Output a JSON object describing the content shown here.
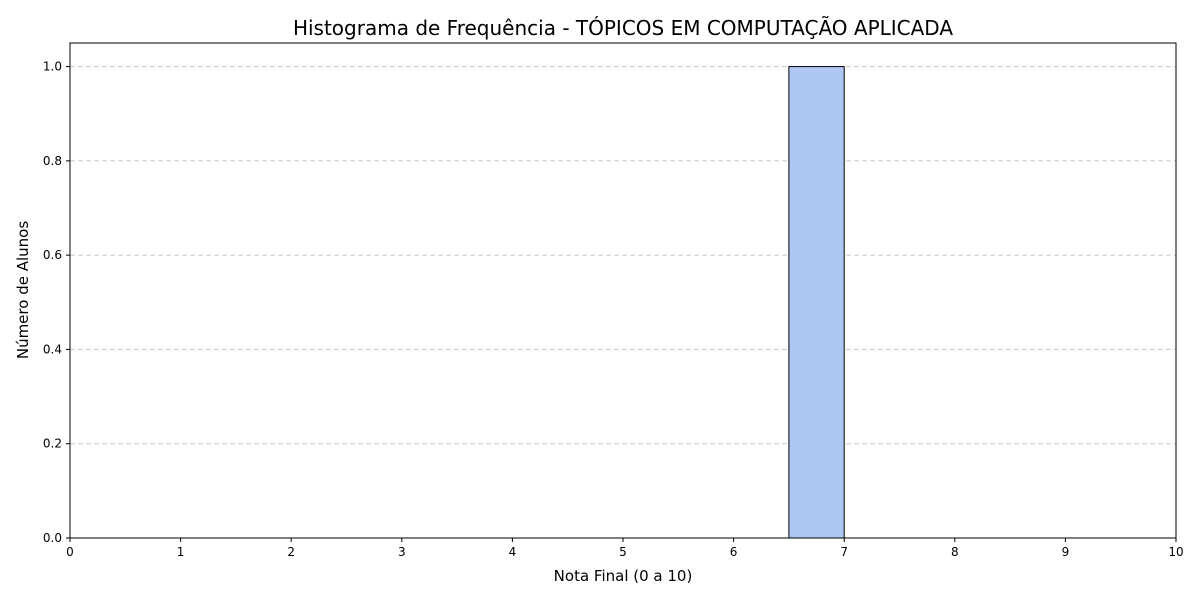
{
  "chart_data": {
    "type": "bar",
    "title": "Histograma de Frequência - TÓPICOS EM COMPUTAÇÃO APLICADA",
    "xlabel": "Nota Final (0 a 10)",
    "ylabel": "Número de Alunos",
    "xlim": [
      0,
      10
    ],
    "ylim": [
      0,
      1.05
    ],
    "xticks": [
      "0",
      "1",
      "2",
      "3",
      "4",
      "5",
      "6",
      "7",
      "8",
      "9",
      "10"
    ],
    "yticks": [
      "0.0",
      "0.2",
      "0.4",
      "0.6",
      "0.8",
      "1.0"
    ],
    "bins": [
      {
        "start": 6.5,
        "end": 7.0,
        "count": 1
      }
    ],
    "bar_color": "#aec7f3",
    "grid": "y-dashed",
    "legend": "none"
  }
}
